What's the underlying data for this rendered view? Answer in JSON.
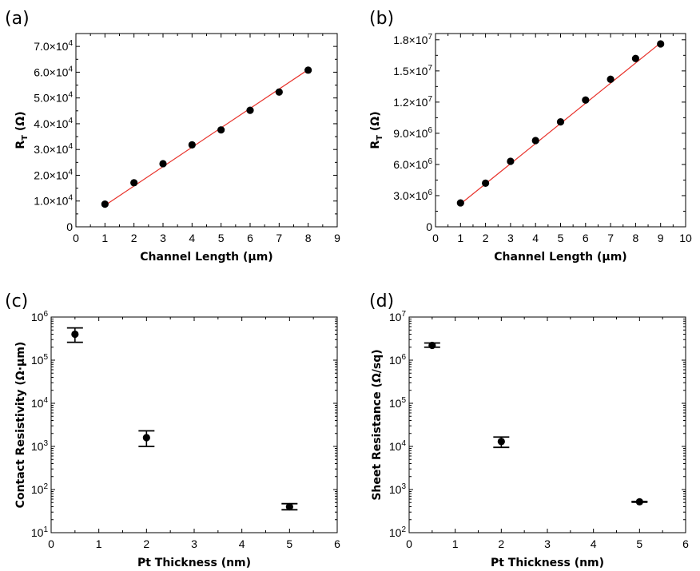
{
  "chart_data": [
    {
      "panel": "(a)",
      "type": "scatter",
      "xlabel": "Channel Length (µm)",
      "ylabel": {
        "main": "R",
        "sub": "T",
        "unit": " (Ω)"
      },
      "xlim": [
        0,
        9
      ],
      "ylim": [
        0,
        75000
      ],
      "xticks": [
        0,
        1,
        2,
        3,
        4,
        5,
        6,
        7,
        8,
        9
      ],
      "yticks": [
        {
          "v": 0,
          "m": "0",
          "e": ""
        },
        {
          "v": 10000,
          "m": "1.0×10",
          "e": "4"
        },
        {
          "v": 20000,
          "m": "2.0×10",
          "e": "4"
        },
        {
          "v": 30000,
          "m": "3.0×10",
          "e": "4"
        },
        {
          "v": 40000,
          "m": "4.0×10",
          "e": "4"
        },
        {
          "v": 50000,
          "m": "5.0×10",
          "e": "4"
        },
        {
          "v": 60000,
          "m": "6.0×10",
          "e": "4"
        },
        {
          "v": 70000,
          "m": "7.0×10",
          "e": "4"
        }
      ],
      "points": [
        [
          1,
          8800
        ],
        [
          2,
          17100
        ],
        [
          3,
          24500
        ],
        [
          4,
          31800
        ],
        [
          5,
          37600
        ],
        [
          6,
          45200
        ],
        [
          7,
          52300
        ],
        [
          8,
          60800
        ]
      ],
      "fit": [
        [
          1,
          8300
        ],
        [
          8,
          61000
        ]
      ],
      "fit_color": "#e8312a"
    },
    {
      "panel": "(b)",
      "type": "scatter",
      "xlabel": "Channel Length (µm)",
      "ylabel": {
        "main": "R",
        "sub": "T",
        "unit": " (Ω)"
      },
      "xlim": [
        0,
        10
      ],
      "ylim": [
        0,
        18600000
      ],
      "xticks": [
        0,
        1,
        2,
        3,
        4,
        5,
        6,
        7,
        8,
        9,
        10
      ],
      "yticks": [
        {
          "v": 0,
          "m": "0",
          "e": ""
        },
        {
          "v": 3000000,
          "m": "3.0×10",
          "e": "6"
        },
        {
          "v": 6000000,
          "m": "6.0×10",
          "e": "6"
        },
        {
          "v": 9000000,
          "m": "9.0×10",
          "e": "6"
        },
        {
          "v": 12000000,
          "m": "1.2×10",
          "e": "7"
        },
        {
          "v": 15000000,
          "m": "1.5×10",
          "e": "7"
        },
        {
          "v": 18000000,
          "m": "1.8×10",
          "e": "7"
        }
      ],
      "points": [
        [
          1,
          2300000
        ],
        [
          2,
          4200000
        ],
        [
          3,
          6300000
        ],
        [
          4,
          8300000
        ],
        [
          5,
          10100000
        ],
        [
          6,
          12200000
        ],
        [
          7,
          14200000
        ],
        [
          8,
          16200000
        ],
        [
          9,
          17600000
        ]
      ],
      "fit": [
        [
          1,
          2200000
        ],
        [
          9,
          17700000
        ]
      ],
      "fit_color": "#e8312a"
    },
    {
      "panel": "(c)",
      "type": "scatter",
      "log_y": true,
      "xlabel": "Pt Thickness (nm)",
      "ylabel": {
        "main": "Contact Resistivity (Ω·µm)",
        "sub": "",
        "unit": ""
      },
      "xlim": [
        0,
        6
      ],
      "ylim": [
        10,
        1000000
      ],
      "xticks": [
        0,
        1,
        2,
        3,
        4,
        5,
        6
      ],
      "yticks": [
        {
          "v": 10,
          "m": "10",
          "e": "1"
        },
        {
          "v": 100,
          "m": "10",
          "e": "2"
        },
        {
          "v": 1000,
          "m": "10",
          "e": "3"
        },
        {
          "v": 10000,
          "m": "10",
          "e": "4"
        },
        {
          "v": 100000,
          "m": "10",
          "e": "5"
        },
        {
          "v": 1000000,
          "m": "10",
          "e": "6"
        }
      ],
      "points": [
        [
          0.5,
          400000
        ],
        [
          2,
          1600
        ],
        [
          5,
          40
        ]
      ],
      "errors": [
        [
          260000,
          560000
        ],
        [
          1000,
          2300
        ],
        [
          34,
          47
        ]
      ]
    },
    {
      "panel": "(d)",
      "type": "scatter",
      "log_y": true,
      "xlabel": "Pt Thickness (nm)",
      "ylabel": {
        "main": "Sheet Resistance (Ω/sq)",
        "sub": "",
        "unit": ""
      },
      "xlim": [
        0,
        6
      ],
      "ylim": [
        100,
        10000000
      ],
      "xticks": [
        0,
        1,
        2,
        3,
        4,
        5,
        6
      ],
      "yticks": [
        {
          "v": 100,
          "m": "10",
          "e": "2"
        },
        {
          "v": 1000,
          "m": "10",
          "e": "3"
        },
        {
          "v": 10000,
          "m": "10",
          "e": "4"
        },
        {
          "v": 100000,
          "m": "10",
          "e": "5"
        },
        {
          "v": 1000000,
          "m": "10",
          "e": "6"
        },
        {
          "v": 10000000,
          "m": "10",
          "e": "7"
        }
      ],
      "points": [
        [
          0.5,
          2200000
        ],
        [
          2,
          13000
        ],
        [
          5,
          520
        ]
      ],
      "errors": [
        [
          2000000,
          2500000
        ],
        [
          9500,
          16500
        ],
        [
          510,
          530
        ]
      ]
    }
  ]
}
